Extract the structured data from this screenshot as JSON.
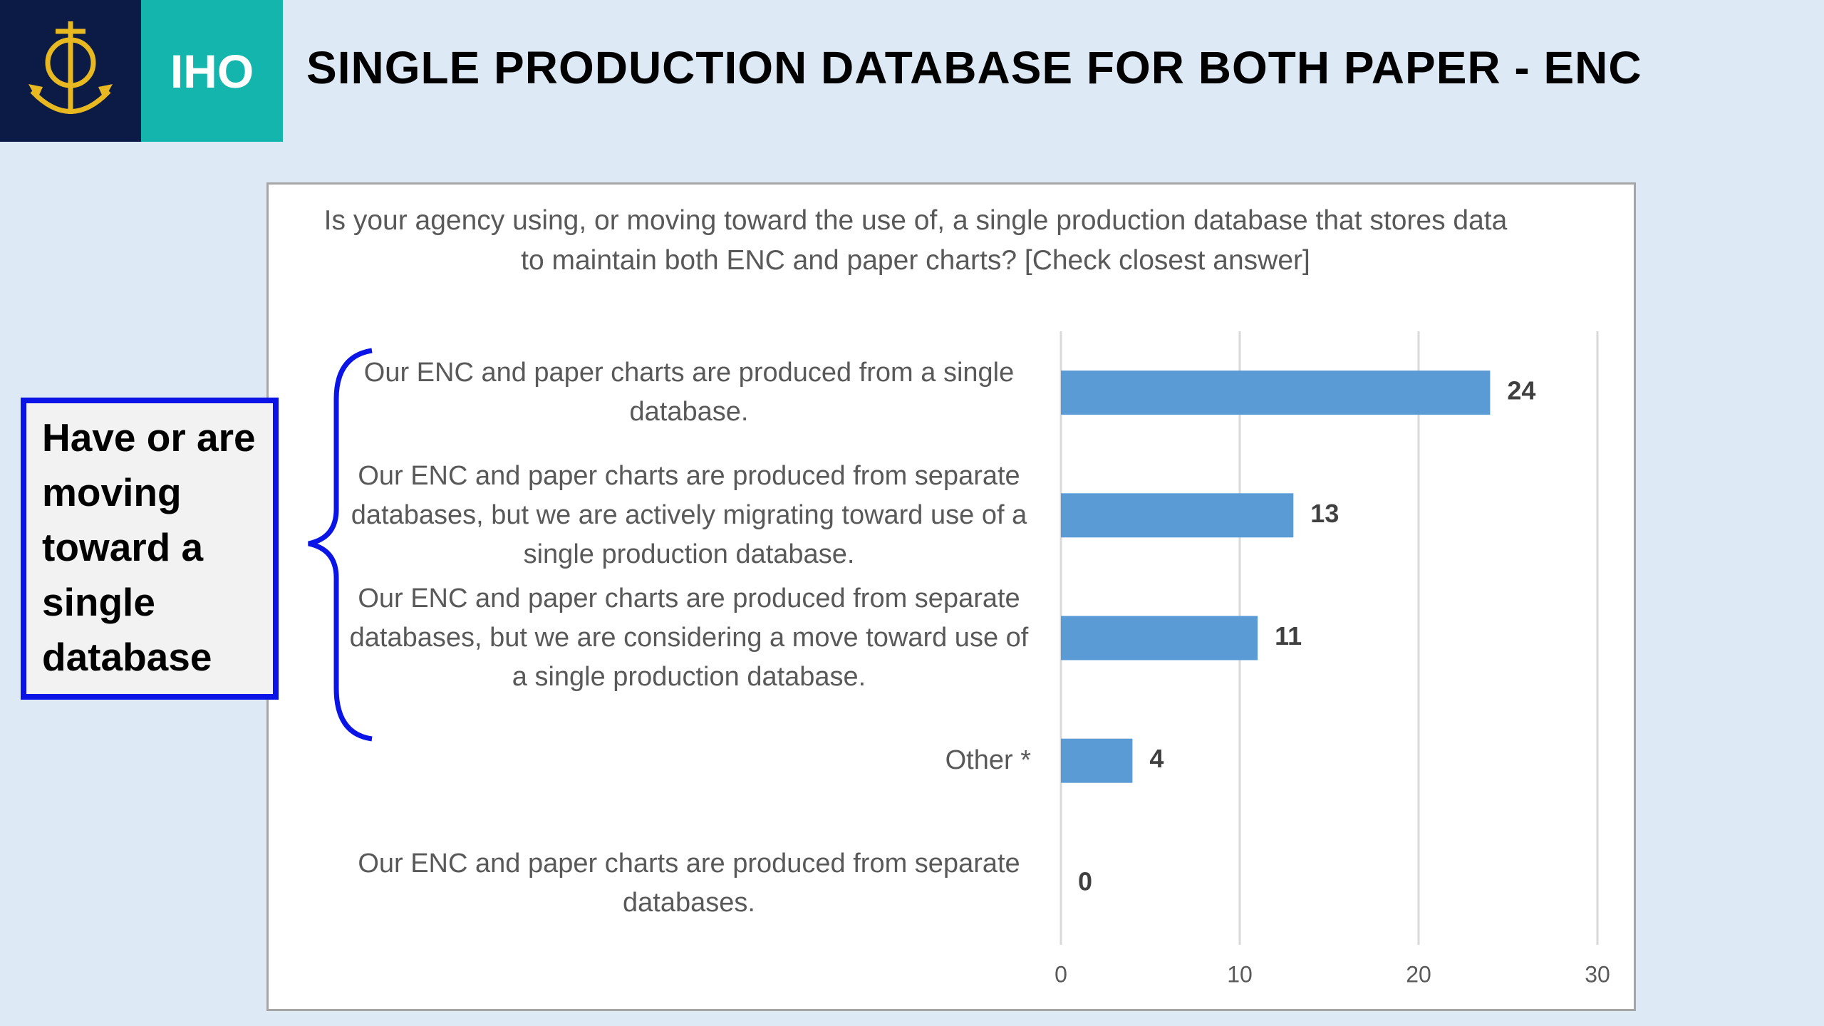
{
  "header": {
    "logo_text": "IHO",
    "title": "SINGLE PRODUCTION DATABASE FOR BOTH PAPER - ENC"
  },
  "annotation": "Have or are moving toward a single database",
  "chart_data": {
    "type": "bar",
    "orientation": "horizontal",
    "title": "Is your agency using, or moving toward the use of, a single production database that stores data to maintain both ENC and paper charts? [Check closest answer]",
    "categories": [
      "Our ENC and paper charts are produced from a single database.",
      "Our ENC and paper charts are produced from separate databases, but we are actively migrating toward use of a single production database.",
      "Our ENC and paper charts are produced from separate databases, but we are considering a move toward use of a single production database.",
      "Other *",
      "Our ENC and paper charts are produced from separate databases."
    ],
    "values": [
      24,
      13,
      11,
      4,
      0
    ],
    "color": "#5b9bd5",
    "xlim": [
      0,
      30
    ],
    "xticks": [
      0,
      10,
      20,
      30
    ],
    "grid": true
  }
}
